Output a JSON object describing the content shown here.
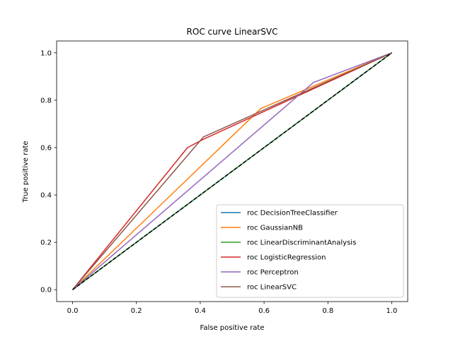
{
  "chart_data": {
    "type": "line",
    "title": "ROC curve LinearSVC",
    "xlabel": "False positive rate",
    "ylabel": "True positive rate",
    "xlim": [
      -0.05,
      1.05
    ],
    "ylim": [
      -0.05,
      1.05
    ],
    "xticks": [
      0.0,
      0.2,
      0.4,
      0.6,
      0.8,
      1.0
    ],
    "yticks": [
      0.0,
      0.2,
      0.4,
      0.6,
      0.8,
      1.0
    ],
    "grid": false,
    "legend_position": "bottom-right",
    "series": [
      {
        "name": "roc DecisionTreeClassifier",
        "color": "#1f77b4",
        "x": [
          0,
          1
        ],
        "y": [
          0,
          1
        ]
      },
      {
        "name": "roc GaussianNB",
        "color": "#ff7f0e",
        "x": [
          0,
          0.59,
          1
        ],
        "y": [
          0,
          0.765,
          1
        ]
      },
      {
        "name": "roc LinearDiscriminantAnalysis",
        "color": "#2ca02c",
        "x": [
          0,
          1
        ],
        "y": [
          0,
          1
        ]
      },
      {
        "name": "roc LogisticRegression",
        "color": "#d62728",
        "x": [
          0,
          0.36,
          0.41,
          1
        ],
        "y": [
          0,
          0.6,
          0.635,
          1
        ]
      },
      {
        "name": "roc Perceptron",
        "color": "#9467bd",
        "x": [
          0,
          0.755,
          1
        ],
        "y": [
          0,
          0.875,
          1
        ]
      },
      {
        "name": "roc LinearSVC",
        "color": "#8c564b",
        "x": [
          0,
          0.41,
          1
        ],
        "y": [
          0,
          0.645,
          1
        ]
      }
    ],
    "reference_line": {
      "color": "#000000",
      "style": "dashed",
      "x": [
        0,
        1
      ],
      "y": [
        0,
        1
      ]
    }
  }
}
